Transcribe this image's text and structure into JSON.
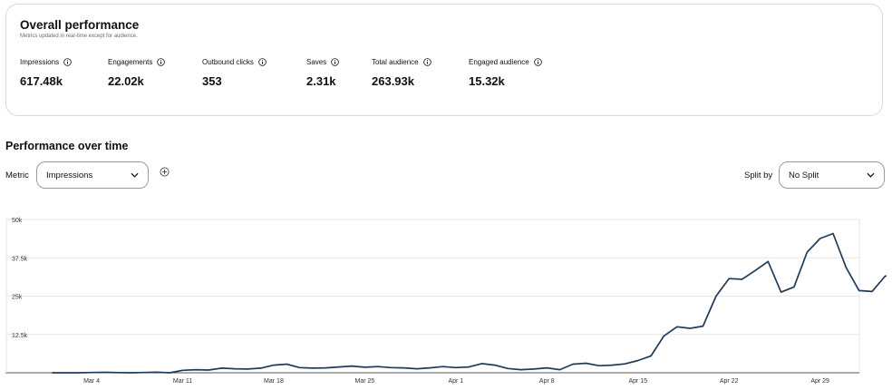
{
  "overall": {
    "title": "Overall performance",
    "subtitle": "Metrics updated in real-time except for audience.",
    "metrics": [
      {
        "label": "Impressions",
        "value": "617.48k"
      },
      {
        "label": "Engagements",
        "value": "22.02k"
      },
      {
        "label": "Outbound clicks",
        "value": "353"
      },
      {
        "label": "Saves",
        "value": "2.31k"
      },
      {
        "label": "Total audience",
        "value": "263.93k"
      },
      {
        "label": "Engaged audience",
        "value": "15.32k"
      }
    ]
  },
  "performance": {
    "title": "Performance over time",
    "metric_label": "Metric",
    "metric_selected": "Impressions",
    "split_label": "Split by",
    "split_selected": "No Split"
  },
  "icons": {
    "info": "info-circle-icon",
    "chevron": "chevron-down-icon",
    "add": "add-circle-icon"
  },
  "colors": {
    "line": "#1f3b57",
    "grid": "#e6e6e6"
  },
  "chart_data": {
    "type": "line",
    "ylim": [
      0,
      50000
    ],
    "y_ticks": [
      {
        "value": 12500,
        "label": "12.5k"
      },
      {
        "value": 25000,
        "label": "25k"
      },
      {
        "value": 37500,
        "label": "37.5k"
      },
      {
        "value": 50000,
        "label": "50k"
      }
    ],
    "x_ticks": [
      {
        "index": 3,
        "label": "Mar 4"
      },
      {
        "index": 10,
        "label": "Mar 11"
      },
      {
        "index": 17,
        "label": "Mar 18"
      },
      {
        "index": 24,
        "label": "Mar 25"
      },
      {
        "index": 31,
        "label": "Apr 1"
      },
      {
        "index": 38,
        "label": "Apr 8"
      },
      {
        "index": 45,
        "label": "Apr 15"
      },
      {
        "index": 52,
        "label": "Apr 22"
      },
      {
        "index": 59,
        "label": "Apr 29"
      }
    ],
    "grid": true,
    "series": [
      {
        "values": [
          0,
          0,
          0,
          100,
          150,
          50,
          0,
          100,
          200,
          0,
          800,
          1000,
          900,
          1500,
          1300,
          1200,
          1500,
          2500,
          2800,
          1700,
          1500,
          1600,
          1900,
          2200,
          1800,
          2000,
          1700,
          1600,
          1300,
          1600,
          2000,
          1700,
          1900,
          3000,
          2500,
          1400,
          1000,
          1200,
          1600,
          1000,
          2800,
          3100,
          2300,
          2500,
          2900,
          4000,
          5500,
          12000,
          15000,
          14500,
          15200,
          25000,
          30700,
          30500,
          33300,
          36300,
          26300,
          28000,
          39300,
          43800,
          45400,
          34300,
          26800,
          26500,
          31500,
          32300
        ]
      }
    ]
  }
}
